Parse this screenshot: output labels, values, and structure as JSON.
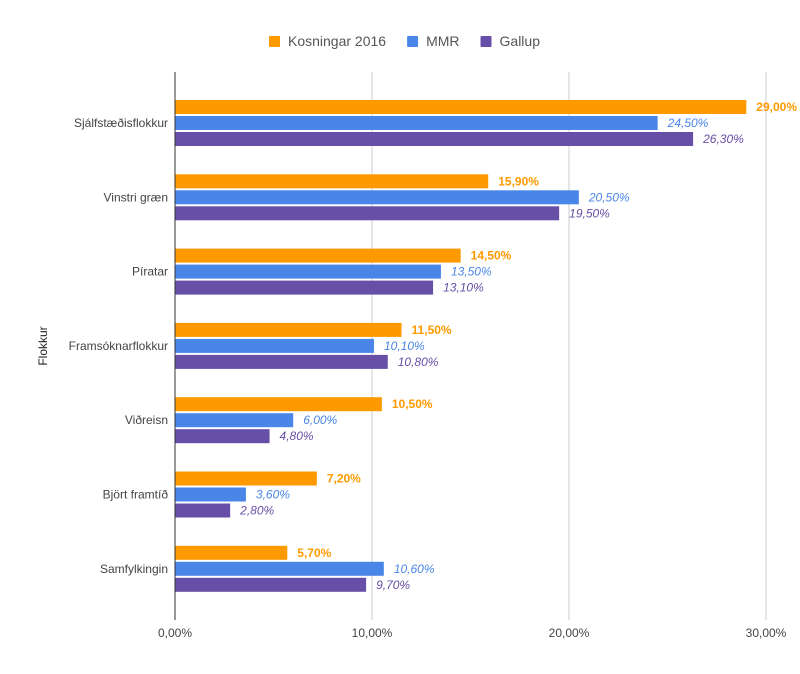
{
  "chart_data": {
    "type": "bar",
    "orientation": "horizontal",
    "title": "",
    "xlabel": "",
    "ylabel": "Flokkur",
    "xlim": [
      0,
      30
    ],
    "x_ticks": [
      "0,00%",
      "10,00%",
      "20,00%",
      "30,00%"
    ],
    "x_tick_values": [
      0,
      10,
      20,
      30
    ],
    "grid": true,
    "legend_position": "top",
    "categories": [
      "Sjálfstæðisflokkur",
      "Vinstri græn",
      "Píratar",
      "Framsóknarflokkur",
      "Viðreisn",
      "Björt framtíð",
      "Samfylkingin"
    ],
    "series": [
      {
        "name": "Kosningar 2016",
        "color": "#ff9900",
        "label_style": "bold",
        "values": [
          29.0,
          15.9,
          14.5,
          11.5,
          10.5,
          7.2,
          5.7
        ],
        "labels": [
          "29,00%",
          "15,90%",
          "14,50%",
          "11,50%",
          "10,50%",
          "7,20%",
          "5,70%"
        ]
      },
      {
        "name": "MMR",
        "color": "#4a86e8",
        "label_style": "italic",
        "values": [
          24.5,
          20.5,
          13.5,
          10.1,
          6.0,
          3.6,
          10.6
        ],
        "labels": [
          "24,50%",
          "20,50%",
          "13,50%",
          "10,10%",
          "6,00%",
          "3,60%",
          "10,60%"
        ]
      },
      {
        "name": "Gallup",
        "color": "#674ea7",
        "label_style": "italic",
        "values": [
          26.3,
          19.5,
          13.1,
          10.8,
          4.8,
          2.8,
          9.7
        ],
        "labels": [
          "26,30%",
          "19,50%",
          "13,10%",
          "10,80%",
          "4,80%",
          "2,80%",
          "9,70%"
        ]
      }
    ]
  }
}
